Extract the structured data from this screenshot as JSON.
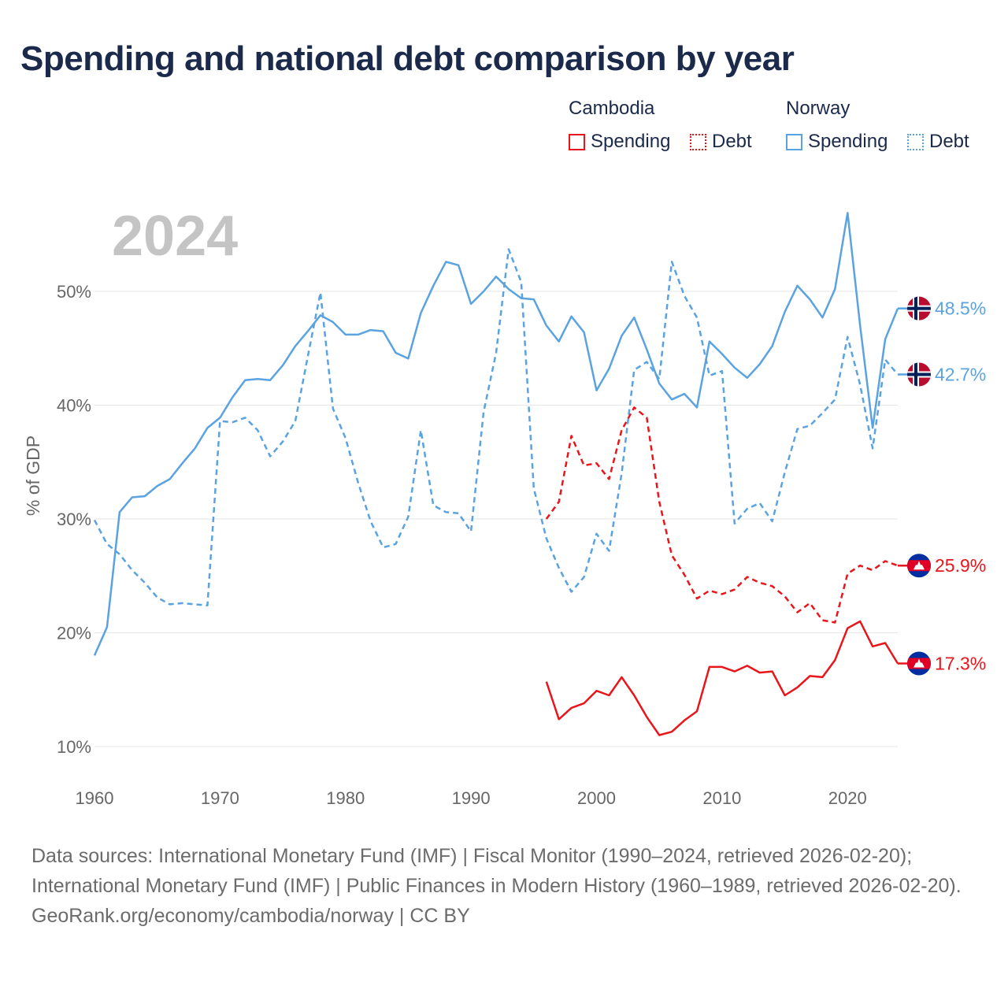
{
  "title": "Spending and national debt comparison by year",
  "legend": {
    "groups": [
      {
        "country": "Cambodia",
        "color": "#e8151b",
        "items": [
          {
            "label": "Spending",
            "style": "solid"
          },
          {
            "label": "Debt",
            "style": "dotted"
          }
        ]
      },
      {
        "country": "Norway",
        "color": "#5aa2e0",
        "items": [
          {
            "label": "Spending",
            "style": "solid"
          },
          {
            "label": "Debt",
            "style": "dotted"
          }
        ]
      }
    ]
  },
  "chart_data": {
    "type": "line",
    "year_label": "2024",
    "ylabel": "% of GDP",
    "xlim": [
      1960,
      2024
    ],
    "ylim": [
      10,
      60
    ],
    "xticks": [
      1960,
      1970,
      1980,
      1990,
      2000,
      2010,
      2020
    ],
    "yticks": [
      10,
      20,
      30,
      40,
      50
    ],
    "ytick_labels": [
      "10%",
      "20%",
      "30%",
      "40%",
      "50%"
    ],
    "series": [
      {
        "name": "Norway Spending",
        "country": "Norway",
        "color": "#5aa2e0",
        "style": "solid",
        "start": 1960,
        "end_label": "48.5%",
        "end_value": 48.5,
        "flag": "norway-flag-icon",
        "values": [
          18.0,
          20.5,
          30.6,
          31.9,
          32.0,
          32.9,
          33.5,
          34.9,
          36.2,
          38.0,
          38.9,
          40.7,
          42.2,
          42.3,
          42.2,
          43.5,
          45.2,
          46.5,
          47.9,
          47.3,
          46.2,
          46.2,
          46.6,
          46.5,
          44.6,
          44.1,
          48.1,
          50.5,
          52.6,
          52.3,
          48.9,
          50.0,
          51.3,
          50.2,
          49.4,
          49.3,
          47.0,
          45.6,
          47.8,
          46.4,
          41.3,
          43.2,
          46.1,
          47.7,
          44.9,
          41.9,
          40.5,
          41.0,
          39.8,
          45.6,
          44.5,
          43.3,
          42.4,
          43.6,
          45.2,
          48.2,
          50.5,
          49.3,
          47.7,
          50.2,
          56.9,
          47.0,
          38.0,
          45.8,
          48.5
        ]
      },
      {
        "name": "Norway Debt",
        "country": "Norway",
        "color": "#5aa2e0",
        "style": "dashed",
        "start": 1960,
        "end_label": "42.7%",
        "end_value": 42.7,
        "flag": "norway-flag-icon",
        "values": [
          29.9,
          27.8,
          26.9,
          25.5,
          24.4,
          23.1,
          22.5,
          22.6,
          22.5,
          22.4,
          38.6,
          38.5,
          38.9,
          37.8,
          35.5,
          36.8,
          38.6,
          44.3,
          49.9,
          39.7,
          37.1,
          33.2,
          29.8,
          27.5,
          27.8,
          30.2,
          37.8,
          31.2,
          30.6,
          30.5,
          28.9,
          39.4,
          44.6,
          53.7,
          50.8,
          32.7,
          28.3,
          25.7,
          23.6,
          24.9,
          28.7,
          27.2,
          34.0,
          43.1,
          43.8,
          42.3,
          52.6,
          49.6,
          47.7,
          42.6,
          43.0,
          29.6,
          30.9,
          31.4,
          29.8,
          34.1,
          37.9,
          38.2,
          39.3,
          40.5,
          46.0,
          41.8,
          36.2,
          44.0,
          42.7
        ]
      },
      {
        "name": "Cambodia Spending",
        "country": "Cambodia",
        "color": "#e8151b",
        "style": "solid",
        "start": 1996,
        "end_label": "17.3%",
        "end_value": 17.3,
        "flag": "cambodia-flag-icon",
        "values": [
          15.7,
          12.4,
          13.4,
          13.8,
          14.9,
          14.5,
          16.1,
          14.5,
          12.6,
          11.0,
          11.3,
          12.3,
          13.1,
          17.0,
          17.0,
          16.6,
          17.1,
          16.5,
          16.6,
          14.5,
          15.2,
          16.2,
          16.1,
          17.6,
          20.4,
          21.0,
          18.8,
          19.1,
          17.3
        ]
      },
      {
        "name": "Cambodia Debt",
        "country": "Cambodia",
        "color": "#e8151b",
        "style": "dashed",
        "start": 1996,
        "end_label": "25.9%",
        "end_value": 25.9,
        "flag": "cambodia-flag-icon",
        "values": [
          30.0,
          31.5,
          37.3,
          34.7,
          34.9,
          33.5,
          37.8,
          39.8,
          38.9,
          31.5,
          26.8,
          25.1,
          23.0,
          23.7,
          23.4,
          23.8,
          24.9,
          24.4,
          24.1,
          23.2,
          21.8,
          22.6,
          21.1,
          20.9,
          25.2,
          25.9,
          25.5,
          26.3,
          25.9
        ]
      }
    ]
  },
  "footer": {
    "sources": "Data sources: International Monetary Fund (IMF) | Fiscal Monitor (1990–2024, retrieved 2026-02-20); International Monetary Fund (IMF) | Public Finances in Modern History (1960–1989, retrieved 2026-02-20).",
    "credit": "GeoRank.org/economy/cambodia/norway | CC BY"
  }
}
